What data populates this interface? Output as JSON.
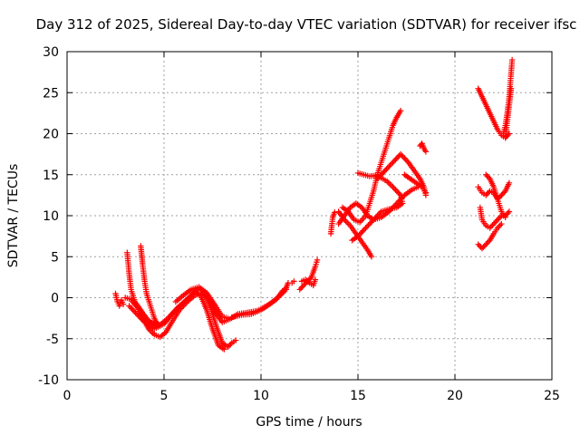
{
  "chart_data": {
    "type": "scatter",
    "title": "Day 312 of 2025, Sidereal Day-to-day VTEC variation (SDTVAR) for receiver ifsc",
    "xlabel": "GPS time / hours",
    "ylabel": "SDTVAR / TECUs",
    "xlim": [
      0,
      25
    ],
    "ylim": [
      -10,
      30
    ],
    "xticks": [
      "0",
      "5",
      "10",
      "15",
      "20",
      "25"
    ],
    "yticks": [
      "-10",
      "-5",
      "0",
      "5",
      "10",
      "15",
      "20",
      "25",
      "30"
    ],
    "grid": true,
    "marker": "plus",
    "color": "#ff0000",
    "series": [
      {
        "points": [
          [
            2.5,
            0.5
          ],
          [
            2.6,
            -0.5
          ],
          [
            2.7,
            -1.0
          ],
          [
            2.8,
            -0.3
          ],
          [
            2.9,
            -0.8
          ]
        ]
      },
      {
        "points": [
          [
            3.1,
            5.5
          ],
          [
            3.2,
            3.0
          ],
          [
            3.3,
            1.0
          ],
          [
            3.5,
            -0.5
          ],
          [
            3.8,
            -1.5
          ],
          [
            4.0,
            -2.2
          ],
          [
            4.2,
            -2.8
          ],
          [
            4.4,
            -3.2
          ],
          [
            4.6,
            -3.0
          ]
        ]
      },
      {
        "points": [
          [
            3.8,
            6.3
          ],
          [
            3.9,
            4.0
          ],
          [
            4.0,
            2.0
          ],
          [
            4.1,
            0.5
          ],
          [
            4.3,
            -1.0
          ],
          [
            4.5,
            -2.5
          ],
          [
            4.7,
            -3.5
          ]
        ]
      },
      {
        "points": [
          [
            3.0,
            0.0
          ],
          [
            3.3,
            -0.2
          ],
          [
            3.6,
            -1.0
          ],
          [
            3.9,
            -2.5
          ],
          [
            4.2,
            -3.8
          ],
          [
            4.5,
            -4.5
          ],
          [
            4.8,
            -4.8
          ],
          [
            5.1,
            -4.2
          ],
          [
            5.4,
            -3.0
          ],
          [
            5.8,
            -1.5
          ],
          [
            6.2,
            -0.5
          ],
          [
            6.6,
            0.3
          ],
          [
            7.0,
            0.5
          ],
          [
            7.4,
            -0.5
          ],
          [
            7.7,
            -2.0
          ],
          [
            8.0,
            -3.0
          ],
          [
            8.3,
            -2.7
          ]
        ]
      },
      {
        "points": [
          [
            3.2,
            -1.0
          ],
          [
            3.6,
            -2.0
          ],
          [
            4.0,
            -3.0
          ],
          [
            4.5,
            -3.8
          ],
          [
            5.0,
            -3.2
          ],
          [
            5.5,
            -1.8
          ],
          [
            6.0,
            -0.6
          ],
          [
            6.5,
            0.5
          ],
          [
            6.8,
            1.2
          ],
          [
            7.1,
            0.5
          ],
          [
            7.4,
            -1.2
          ],
          [
            7.7,
            -3.5
          ],
          [
            8.0,
            -5.5
          ],
          [
            8.3,
            -6.0
          ],
          [
            8.5,
            -5.5
          ],
          [
            8.7,
            -5.2
          ]
        ]
      },
      {
        "points": [
          [
            3.4,
            -0.6
          ],
          [
            3.8,
            -1.6
          ],
          [
            4.2,
            -2.8
          ],
          [
            4.7,
            -3.5
          ],
          [
            5.2,
            -2.5
          ],
          [
            5.7,
            -1.2
          ],
          [
            6.2,
            -0.2
          ],
          [
            6.6,
            0.8
          ],
          [
            6.9,
            0.2
          ],
          [
            7.2,
            -1.5
          ],
          [
            7.5,
            -3.8
          ],
          [
            7.8,
            -5.8
          ],
          [
            8.1,
            -6.3
          ]
        ]
      },
      {
        "points": [
          [
            5.6,
            -0.5
          ],
          [
            6.0,
            0.3
          ],
          [
            6.4,
            1.0
          ],
          [
            6.8,
            1.3
          ],
          [
            7.2,
            0.6
          ],
          [
            7.6,
            -0.8
          ],
          [
            8.0,
            -2.3
          ],
          [
            8.4,
            -2.6
          ],
          [
            8.8,
            -2.0
          ],
          [
            9.3,
            -1.8
          ],
          [
            9.8,
            -1.6
          ],
          [
            10.3,
            -1.0
          ],
          [
            10.8,
            -0.2
          ],
          [
            11.1,
            0.8
          ],
          [
            11.3,
            1.2
          ],
          [
            11.4,
            1.8
          ]
        ]
      },
      {
        "points": [
          [
            8.5,
            -2.4
          ],
          [
            9.0,
            -2.1
          ],
          [
            9.5,
            -2.0
          ],
          [
            10.0,
            -1.5
          ],
          [
            10.5,
            -0.7
          ],
          [
            11.0,
            0.3
          ],
          [
            11.3,
            1.0
          ]
        ]
      },
      {
        "points": [
          [
            11.6,
            1.8
          ],
          [
            11.7,
            2.0
          ]
        ]
      },
      {
        "points": [
          [
            12.0,
            1.0
          ],
          [
            12.2,
            1.5
          ],
          [
            12.4,
            2.0
          ],
          [
            12.6,
            2.5
          ],
          [
            12.8,
            3.8
          ],
          [
            12.9,
            4.6
          ]
        ]
      },
      {
        "points": [
          [
            12.1,
            2.0
          ],
          [
            12.3,
            2.2
          ],
          [
            12.5,
            1.8
          ],
          [
            12.7,
            1.5
          ],
          [
            12.8,
            2.2
          ]
        ]
      },
      {
        "points": [
          [
            13.6,
            7.8
          ],
          [
            13.7,
            9.8
          ],
          [
            13.8,
            10.4
          ]
        ]
      },
      {
        "points": [
          [
            14.0,
            10.5
          ],
          [
            14.3,
            9.5
          ],
          [
            14.6,
            8.8
          ],
          [
            14.9,
            7.8
          ],
          [
            15.2,
            6.8
          ],
          [
            15.5,
            5.8
          ],
          [
            15.7,
            5.0
          ]
        ]
      },
      {
        "points": [
          [
            14.0,
            9.0
          ],
          [
            14.3,
            10.0
          ],
          [
            14.6,
            11.0
          ],
          [
            14.9,
            11.5
          ],
          [
            15.2,
            11.0
          ],
          [
            15.5,
            10.0
          ],
          [
            15.8,
            9.5
          ],
          [
            16.2,
            9.8
          ],
          [
            16.6,
            10.5
          ],
          [
            17.0,
            11.5
          ],
          [
            17.4,
            12.5
          ],
          [
            17.8,
            13.2
          ],
          [
            18.1,
            13.5
          ]
        ]
      },
      {
        "points": [
          [
            14.2,
            11.0
          ],
          [
            14.5,
            10.5
          ],
          [
            14.8,
            9.5
          ],
          [
            15.1,
            9.2
          ],
          [
            15.4,
            10.0
          ],
          [
            15.6,
            11.5
          ],
          [
            15.8,
            13.0
          ],
          [
            16.0,
            15.0
          ],
          [
            16.2,
            16.5
          ],
          [
            16.4,
            18.0
          ],
          [
            16.6,
            19.5
          ],
          [
            16.8,
            21.0
          ],
          [
            17.0,
            22.0
          ],
          [
            17.2,
            22.8
          ]
        ]
      },
      {
        "points": [
          [
            15.0,
            15.2
          ],
          [
            15.3,
            15.0
          ],
          [
            15.6,
            14.8
          ],
          [
            15.9,
            14.9
          ],
          [
            16.2,
            14.6
          ],
          [
            16.5,
            14.2
          ],
          [
            16.8,
            13.5
          ],
          [
            17.0,
            13.0
          ],
          [
            17.2,
            12.5
          ],
          [
            17.3,
            11.5
          ],
          [
            17.0,
            11.0
          ],
          [
            16.6,
            10.8
          ],
          [
            16.2,
            10.5
          ],
          [
            15.8,
            9.5
          ],
          [
            15.4,
            8.5
          ],
          [
            15.0,
            7.5
          ],
          [
            14.7,
            7.0
          ]
        ]
      },
      {
        "points": [
          [
            16.0,
            14.5
          ],
          [
            16.4,
            15.5
          ],
          [
            16.8,
            16.5
          ],
          [
            17.2,
            17.5
          ],
          [
            17.6,
            16.5
          ],
          [
            17.9,
            15.5
          ],
          [
            18.2,
            14.5
          ],
          [
            18.4,
            13.5
          ],
          [
            18.5,
            12.5
          ]
        ]
      },
      {
        "points": [
          [
            17.4,
            15.0
          ],
          [
            17.7,
            14.5
          ],
          [
            18.0,
            14.0
          ],
          [
            18.3,
            13.5
          ],
          [
            18.5,
            12.8
          ]
        ]
      },
      {
        "points": [
          [
            18.2,
            18.5
          ],
          [
            18.3,
            18.8
          ],
          [
            18.4,
            18.2
          ],
          [
            18.5,
            17.8
          ]
        ]
      },
      {
        "points": [
          [
            21.2,
            25.5
          ],
          [
            21.4,
            24.5
          ],
          [
            21.6,
            23.5
          ],
          [
            21.8,
            22.5
          ],
          [
            22.0,
            21.5
          ],
          [
            22.2,
            20.5
          ],
          [
            22.4,
            19.8
          ],
          [
            22.6,
            19.5
          ],
          [
            22.8,
            20.0
          ]
        ]
      },
      {
        "points": [
          [
            21.2,
            13.5
          ],
          [
            21.4,
            12.8
          ],
          [
            21.6,
            12.5
          ],
          [
            21.8,
            13.0
          ],
          [
            22.0,
            12.8
          ],
          [
            22.2,
            12.0
          ],
          [
            22.4,
            12.5
          ],
          [
            22.6,
            13.0
          ],
          [
            22.8,
            14.0
          ]
        ]
      },
      {
        "points": [
          [
            21.6,
            15.0
          ],
          [
            21.8,
            14.5
          ],
          [
            22.0,
            13.5
          ],
          [
            22.2,
            12.0
          ],
          [
            22.4,
            10.5
          ],
          [
            22.6,
            9.8
          ]
        ]
      },
      {
        "points": [
          [
            21.3,
            11.0
          ],
          [
            21.4,
            9.5
          ],
          [
            21.6,
            8.8
          ],
          [
            21.8,
            8.5
          ],
          [
            22.0,
            9.0
          ],
          [
            22.2,
            9.5
          ],
          [
            22.4,
            10.0
          ],
          [
            22.6,
            10.0
          ],
          [
            22.8,
            10.5
          ]
        ]
      },
      {
        "points": [
          [
            21.2,
            6.5
          ],
          [
            21.4,
            6.0
          ],
          [
            21.6,
            6.5
          ],
          [
            21.8,
            7.0
          ],
          [
            22.0,
            7.8
          ],
          [
            22.2,
            8.5
          ],
          [
            22.4,
            9.0
          ]
        ]
      },
      {
        "points": [
          [
            22.5,
            20.0
          ],
          [
            22.6,
            21.0
          ],
          [
            22.7,
            22.5
          ],
          [
            22.8,
            24.5
          ],
          [
            22.85,
            26.0
          ],
          [
            22.9,
            27.5
          ],
          [
            22.95,
            29.0
          ]
        ]
      },
      {
        "points": [
          [
            22.6,
            19.5
          ],
          [
            22.7,
            21.5
          ],
          [
            22.8,
            23.5
          ],
          [
            22.9,
            25.5
          ]
        ]
      }
    ]
  }
}
